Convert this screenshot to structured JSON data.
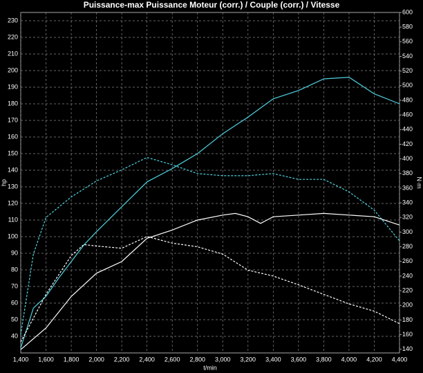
{
  "chart_data": {
    "type": "line",
    "title": "Puissance-max Puissance Moteur (corr.) / Couple (corr.) / Vitesse",
    "y_label": "hp",
    "y2_label": "N·m",
    "x_label": "t/min",
    "xlim": [
      1400,
      4400
    ],
    "xticks": [
      {
        "value": 1400,
        "label": "1,400"
      },
      {
        "value": 1600,
        "label": "1,600"
      },
      {
        "value": 1800,
        "label": "1,800"
      },
      {
        "value": 2000,
        "label": "2,000"
      },
      {
        "value": 2200,
        "label": "2,200"
      },
      {
        "value": 2400,
        "label": "2,400"
      },
      {
        "value": 2600,
        "label": "2,600"
      },
      {
        "value": 2800,
        "label": "2,800"
      },
      {
        "value": 3000,
        "label": "3,000"
      },
      {
        "value": 3200,
        "label": "3,200"
      },
      {
        "value": 3400,
        "label": "3,400"
      },
      {
        "value": 3600,
        "label": "3,600"
      },
      {
        "value": 3800,
        "label": "3,800"
      },
      {
        "value": 4000,
        "label": "4,000"
      },
      {
        "value": 4200,
        "label": "4,200"
      },
      {
        "value": 4400,
        "label": "4,400"
      }
    ],
    "ylim": [
      30,
      235
    ],
    "yticks": [
      40,
      50,
      60,
      70,
      80,
      90,
      100,
      110,
      120,
      130,
      140,
      150,
      160,
      170,
      180,
      190,
      200,
      210,
      220,
      230
    ],
    "y2lim": [
      135,
      600
    ],
    "y2ticks": [
      140,
      160,
      180,
      200,
      220,
      240,
      260,
      280,
      300,
      320,
      340,
      360,
      380,
      400,
      420,
      440,
      460,
      480,
      500,
      520,
      540,
      560,
      580,
      600
    ],
    "grid": true,
    "series": [
      {
        "color": "#4fd3e0",
        "dashed": false,
        "axis": "y",
        "x": [
          1400,
          1500,
          1600,
          1700,
          1800,
          1900,
          2000,
          2200,
          2400,
          2600,
          2800,
          3000,
          3200,
          3400,
          3600,
          3800,
          4000,
          4200,
          4400
        ],
        "values": [
          33,
          57,
          64,
          75,
          85,
          95,
          103,
          118,
          133,
          141,
          150,
          162,
          172,
          183,
          188,
          195,
          196,
          186,
          180
        ]
      },
      {
        "color": "#4fd3e0",
        "dashed": true,
        "axis": "y2",
        "x": [
          1400,
          1500,
          1600,
          1800,
          2000,
          2200,
          2400,
          2600,
          2800,
          3000,
          3200,
          3400,
          3600,
          3800,
          4000,
          4200,
          4400
        ],
        "values": [
          160,
          270,
          320,
          348,
          370,
          385,
          402,
          392,
          380,
          377,
          377,
          380,
          372,
          372,
          355,
          330,
          288
        ]
      },
      {
        "color": "#ffffff",
        "dashed": false,
        "axis": "y",
        "x": [
          1400,
          1600,
          1800,
          2000,
          2200,
          2400,
          2600,
          2800,
          3000,
          3100,
          3200,
          3300,
          3400,
          3600,
          3800,
          4000,
          4200,
          4400
        ],
        "values": [
          32,
          45,
          64,
          78,
          85,
          99,
          104,
          110,
          113,
          114,
          112,
          108,
          112,
          113,
          114,
          113,
          112,
          107
        ]
      },
      {
        "color": "#ffffff",
        "dashed": true,
        "axis": "y2",
        "x": [
          1400,
          1600,
          1800,
          1900,
          2000,
          2200,
          2400,
          2600,
          2800,
          3000,
          3200,
          3400,
          3600,
          3800,
          4000,
          4200,
          4400
        ],
        "values": [
          150,
          215,
          268,
          283,
          281,
          278,
          294,
          285,
          280,
          270,
          248,
          240,
          228,
          215,
          202,
          192,
          175
        ]
      }
    ]
  }
}
